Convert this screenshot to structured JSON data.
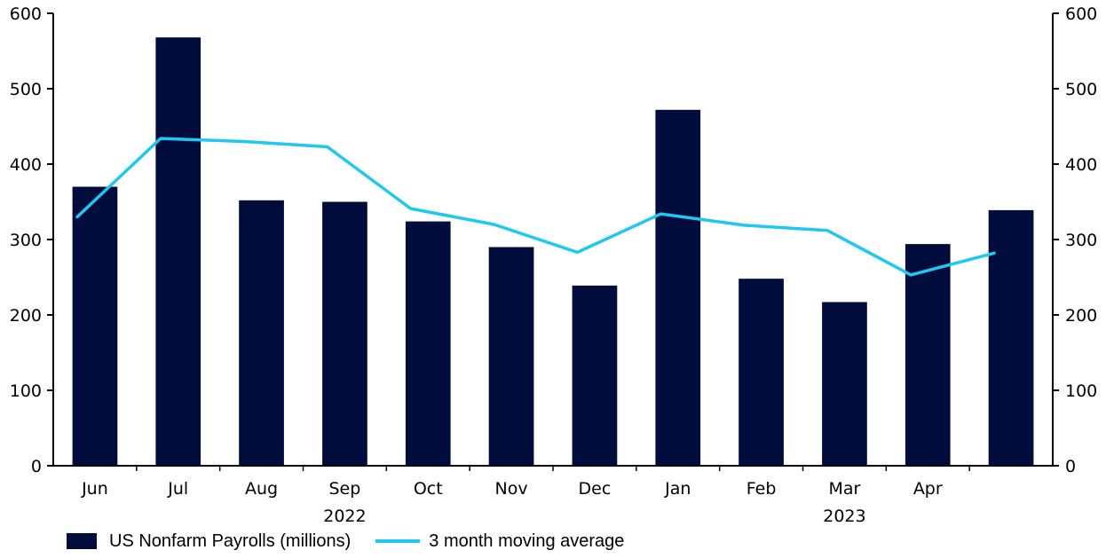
{
  "chart_data": {
    "type": "bar",
    "categories": [
      "Jun",
      "Jul",
      "Aug",
      "Sep",
      "Oct",
      "Nov",
      "Dec",
      "Jan",
      "Feb",
      "Mar",
      "Apr",
      ""
    ],
    "year_labels": [
      {
        "label": "2022",
        "span": [
          "Jun",
          "Dec"
        ]
      },
      {
        "label": "2023",
        "span": [
          "Jan",
          ""
        ]
      }
    ],
    "series": [
      {
        "name": "US Nonfarm Payrolls (millions)",
        "type": "bar",
        "color": "#000c3c",
        "values": [
          370,
          568,
          352,
          350,
          324,
          290,
          239,
          472,
          248,
          217,
          294,
          339
        ]
      },
      {
        "name": "3 month moving average",
        "type": "line",
        "color": "#1ec8f0",
        "values": [
          330,
          434,
          430,
          423,
          341,
          320,
          283,
          334,
          319,
          312,
          253,
          282
        ]
      }
    ],
    "ylim": [
      0,
      600
    ],
    "yticks": [
      0,
      100,
      200,
      300,
      400,
      500,
      600
    ],
    "left_axis_ticks": [
      "0",
      "100",
      "200",
      "300",
      "400",
      "500",
      "600"
    ],
    "right_axis_ticks": [
      "0",
      "100",
      "200",
      "300",
      "400",
      "500",
      "600"
    ],
    "grid": false,
    "legend_position": "bottom-left"
  },
  "legend": {
    "bars_label": "US Nonfarm Payrolls (millions)",
    "line_label": "3 month moving average"
  }
}
